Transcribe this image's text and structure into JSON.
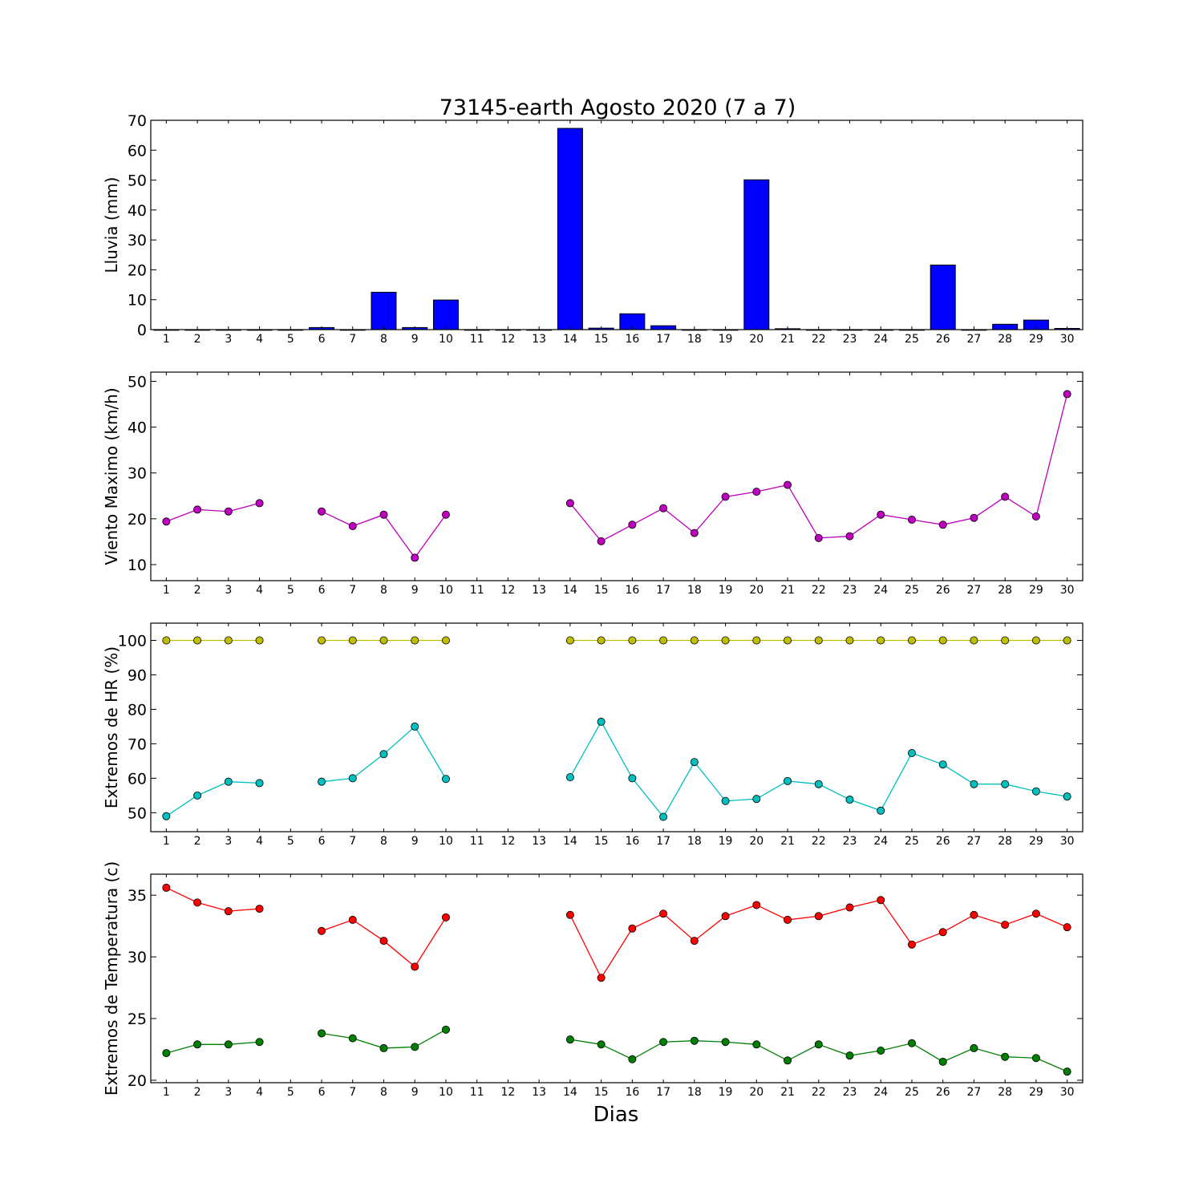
{
  "figure": {
    "title": "73145-earth Agosto 2020  (7 a 7)",
    "xlabel": "Dias"
  },
  "chart_data": [
    {
      "type": "bar",
      "ylabel": "Lluvia (mm)",
      "ylim": [
        0,
        70
      ],
      "yticks": [
        0,
        10,
        20,
        30,
        40,
        50,
        60,
        70
      ],
      "xlim": [
        0.5,
        30.5
      ],
      "xticks": [
        1,
        2,
        3,
        4,
        5,
        6,
        7,
        8,
        9,
        10,
        11,
        12,
        13,
        14,
        15,
        16,
        17,
        18,
        19,
        20,
        21,
        22,
        23,
        24,
        25,
        26,
        27,
        28,
        29,
        30
      ],
      "grid": false,
      "categories": [
        1,
        2,
        3,
        4,
        5,
        6,
        7,
        8,
        9,
        10,
        11,
        12,
        13,
        14,
        15,
        16,
        17,
        18,
        19,
        20,
        21,
        22,
        23,
        24,
        25,
        26,
        27,
        28,
        29,
        30
      ],
      "series": [
        {
          "color": "#0000ff",
          "values": [
            0,
            0,
            0,
            0,
            0,
            0.7,
            0,
            12.5,
            0.7,
            9.9,
            0,
            0,
            0,
            67.3,
            0.5,
            5.3,
            1.3,
            0,
            0,
            50.1,
            0.3,
            0,
            0,
            0,
            0,
            21.6,
            0,
            1.8,
            3.2,
            0.4
          ]
        }
      ]
    },
    {
      "type": "line",
      "ylabel": "Viento Maximo (km/h)",
      "ylim": [
        6.5,
        52
      ],
      "yticks": [
        10,
        20,
        30,
        40,
        50
      ],
      "xlim": [
        0.5,
        30.5
      ],
      "xticks": [
        1,
        2,
        3,
        4,
        5,
        6,
        7,
        8,
        9,
        10,
        11,
        12,
        13,
        14,
        15,
        16,
        17,
        18,
        19,
        20,
        21,
        22,
        23,
        24,
        25,
        26,
        27,
        28,
        29,
        30
      ],
      "grid": false,
      "x": [
        1,
        2,
        3,
        4,
        5,
        6,
        7,
        8,
        9,
        10,
        11,
        12,
        13,
        14,
        15,
        16,
        17,
        18,
        19,
        20,
        21,
        22,
        23,
        24,
        25,
        26,
        27,
        28,
        29,
        30
      ],
      "series": [
        {
          "color": "#bf00bf",
          "values": [
            19.4,
            22.0,
            21.6,
            23.4,
            null,
            21.6,
            18.4,
            20.9,
            11.5,
            20.9,
            null,
            null,
            null,
            23.4,
            15.1,
            18.7,
            22.3,
            16.9,
            24.8,
            25.9,
            27.4,
            15.8,
            16.2,
            20.9,
            19.8,
            18.7,
            20.2,
            24.8,
            20.5,
            47.2
          ]
        }
      ]
    },
    {
      "type": "line",
      "ylabel": "Extremos de HR (%)",
      "ylim": [
        44.5,
        105
      ],
      "yticks": [
        50,
        60,
        70,
        80,
        90,
        100
      ],
      "xlim": [
        0.5,
        30.5
      ],
      "xticks": [
        1,
        2,
        3,
        4,
        5,
        6,
        7,
        8,
        9,
        10,
        11,
        12,
        13,
        14,
        15,
        16,
        17,
        18,
        19,
        20,
        21,
        22,
        23,
        24,
        25,
        26,
        27,
        28,
        29,
        30
      ],
      "grid": false,
      "x": [
        1,
        2,
        3,
        4,
        5,
        6,
        7,
        8,
        9,
        10,
        11,
        12,
        13,
        14,
        15,
        16,
        17,
        18,
        19,
        20,
        21,
        22,
        23,
        24,
        25,
        26,
        27,
        28,
        29,
        30
      ],
      "series": [
        {
          "color": "#bfbf00",
          "values": [
            100,
            100,
            100,
            100,
            null,
            100,
            100,
            100,
            100,
            100,
            null,
            null,
            null,
            100,
            100,
            100,
            100,
            100,
            100,
            100,
            100,
            100,
            100,
            100,
            100,
            100,
            100,
            100,
            100,
            100
          ]
        },
        {
          "color": "#00bfbf",
          "values": [
            49,
            55,
            59,
            58.6,
            null,
            59,
            60,
            67,
            75,
            59.8,
            null,
            null,
            null,
            60.3,
            76.4,
            60,
            48.8,
            64.7,
            53.4,
            54,
            59.2,
            58.3,
            53.8,
            50.6,
            67.3,
            64,
            58.3,
            58.3,
            56.2,
            54.7
          ]
        }
      ]
    },
    {
      "type": "line",
      "ylabel": "Extremos de Temperatura (c)",
      "ylim": [
        19.8,
        36.7
      ],
      "yticks": [
        20,
        25,
        30,
        35
      ],
      "xlim": [
        0.5,
        30.5
      ],
      "xticks": [
        1,
        2,
        3,
        4,
        5,
        6,
        7,
        8,
        9,
        10,
        11,
        12,
        13,
        14,
        15,
        16,
        17,
        18,
        19,
        20,
        21,
        22,
        23,
        24,
        25,
        26,
        27,
        28,
        29,
        30
      ],
      "grid": false,
      "x": [
        1,
        2,
        3,
        4,
        5,
        6,
        7,
        8,
        9,
        10,
        11,
        12,
        13,
        14,
        15,
        16,
        17,
        18,
        19,
        20,
        21,
        22,
        23,
        24,
        25,
        26,
        27,
        28,
        29,
        30
      ],
      "series": [
        {
          "color": "#ff0000",
          "values": [
            35.6,
            34.4,
            33.7,
            33.9,
            null,
            32.1,
            33.0,
            31.3,
            29.2,
            33.2,
            null,
            null,
            null,
            33.4,
            28.3,
            32.3,
            33.5,
            31.3,
            33.3,
            34.2,
            33.0,
            33.3,
            34.0,
            34.6,
            31.0,
            32.0,
            33.4,
            32.6,
            33.5,
            32.4
          ]
        },
        {
          "color": "#007f00",
          "values": [
            22.2,
            22.9,
            22.9,
            23.1,
            null,
            23.8,
            23.4,
            22.6,
            22.7,
            24.1,
            null,
            null,
            null,
            23.3,
            22.9,
            21.7,
            23.1,
            23.2,
            23.1,
            22.9,
            21.6,
            22.9,
            22.0,
            22.4,
            23.0,
            21.5,
            22.6,
            21.9,
            21.8,
            20.7
          ]
        }
      ]
    }
  ]
}
